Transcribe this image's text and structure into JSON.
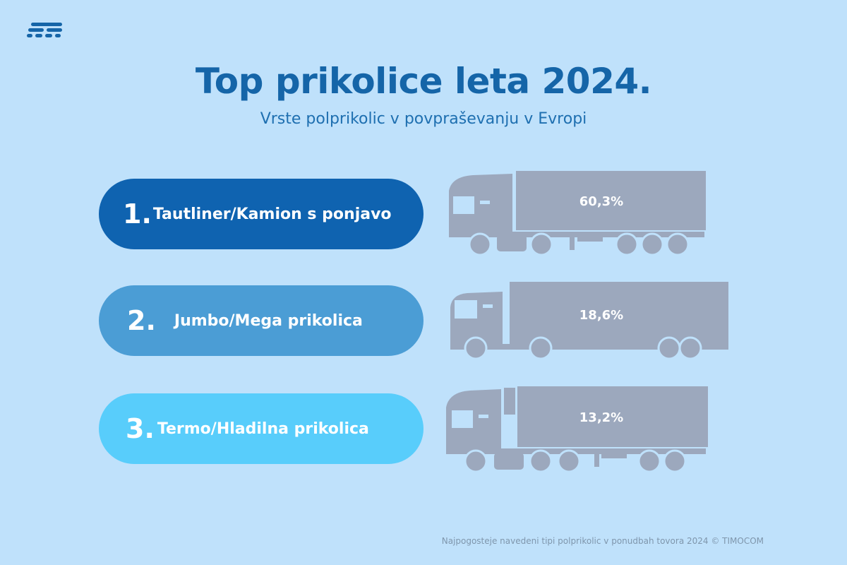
{
  "brand": {
    "logo_icon": "timocom-logo-icon",
    "color": "#1565a8"
  },
  "header": {
    "title": "Top prikolice leta 2024.",
    "subtitle": "Vrste polprikolic v povpraševanju v Evropi"
  },
  "ranking": [
    {
      "rank": "1.",
      "label": "Tautliner/Kamion s ponjavo",
      "share": "60,3%",
      "share_value": 60.3,
      "color": "#0f63b0",
      "icon": "curtainsider-truck-icon"
    },
    {
      "rank": "2.",
      "label": "Jumbo/Mega prikolica",
      "share": "18,6%",
      "share_value": 18.6,
      "color": "#4b9dd5",
      "icon": "mega-trailer-truck-icon"
    },
    {
      "rank": "3.",
      "label": "Termo/Hladilna prikolica",
      "share": "13,2%",
      "share_value": 13.2,
      "color": "#58cdfb",
      "icon": "refrigerated-truck-icon"
    }
  ],
  "footer": {
    "source": "Najpogosteje navedeni tipi polprikolic v ponudbah tovora 2024 © TIMOCOM"
  }
}
